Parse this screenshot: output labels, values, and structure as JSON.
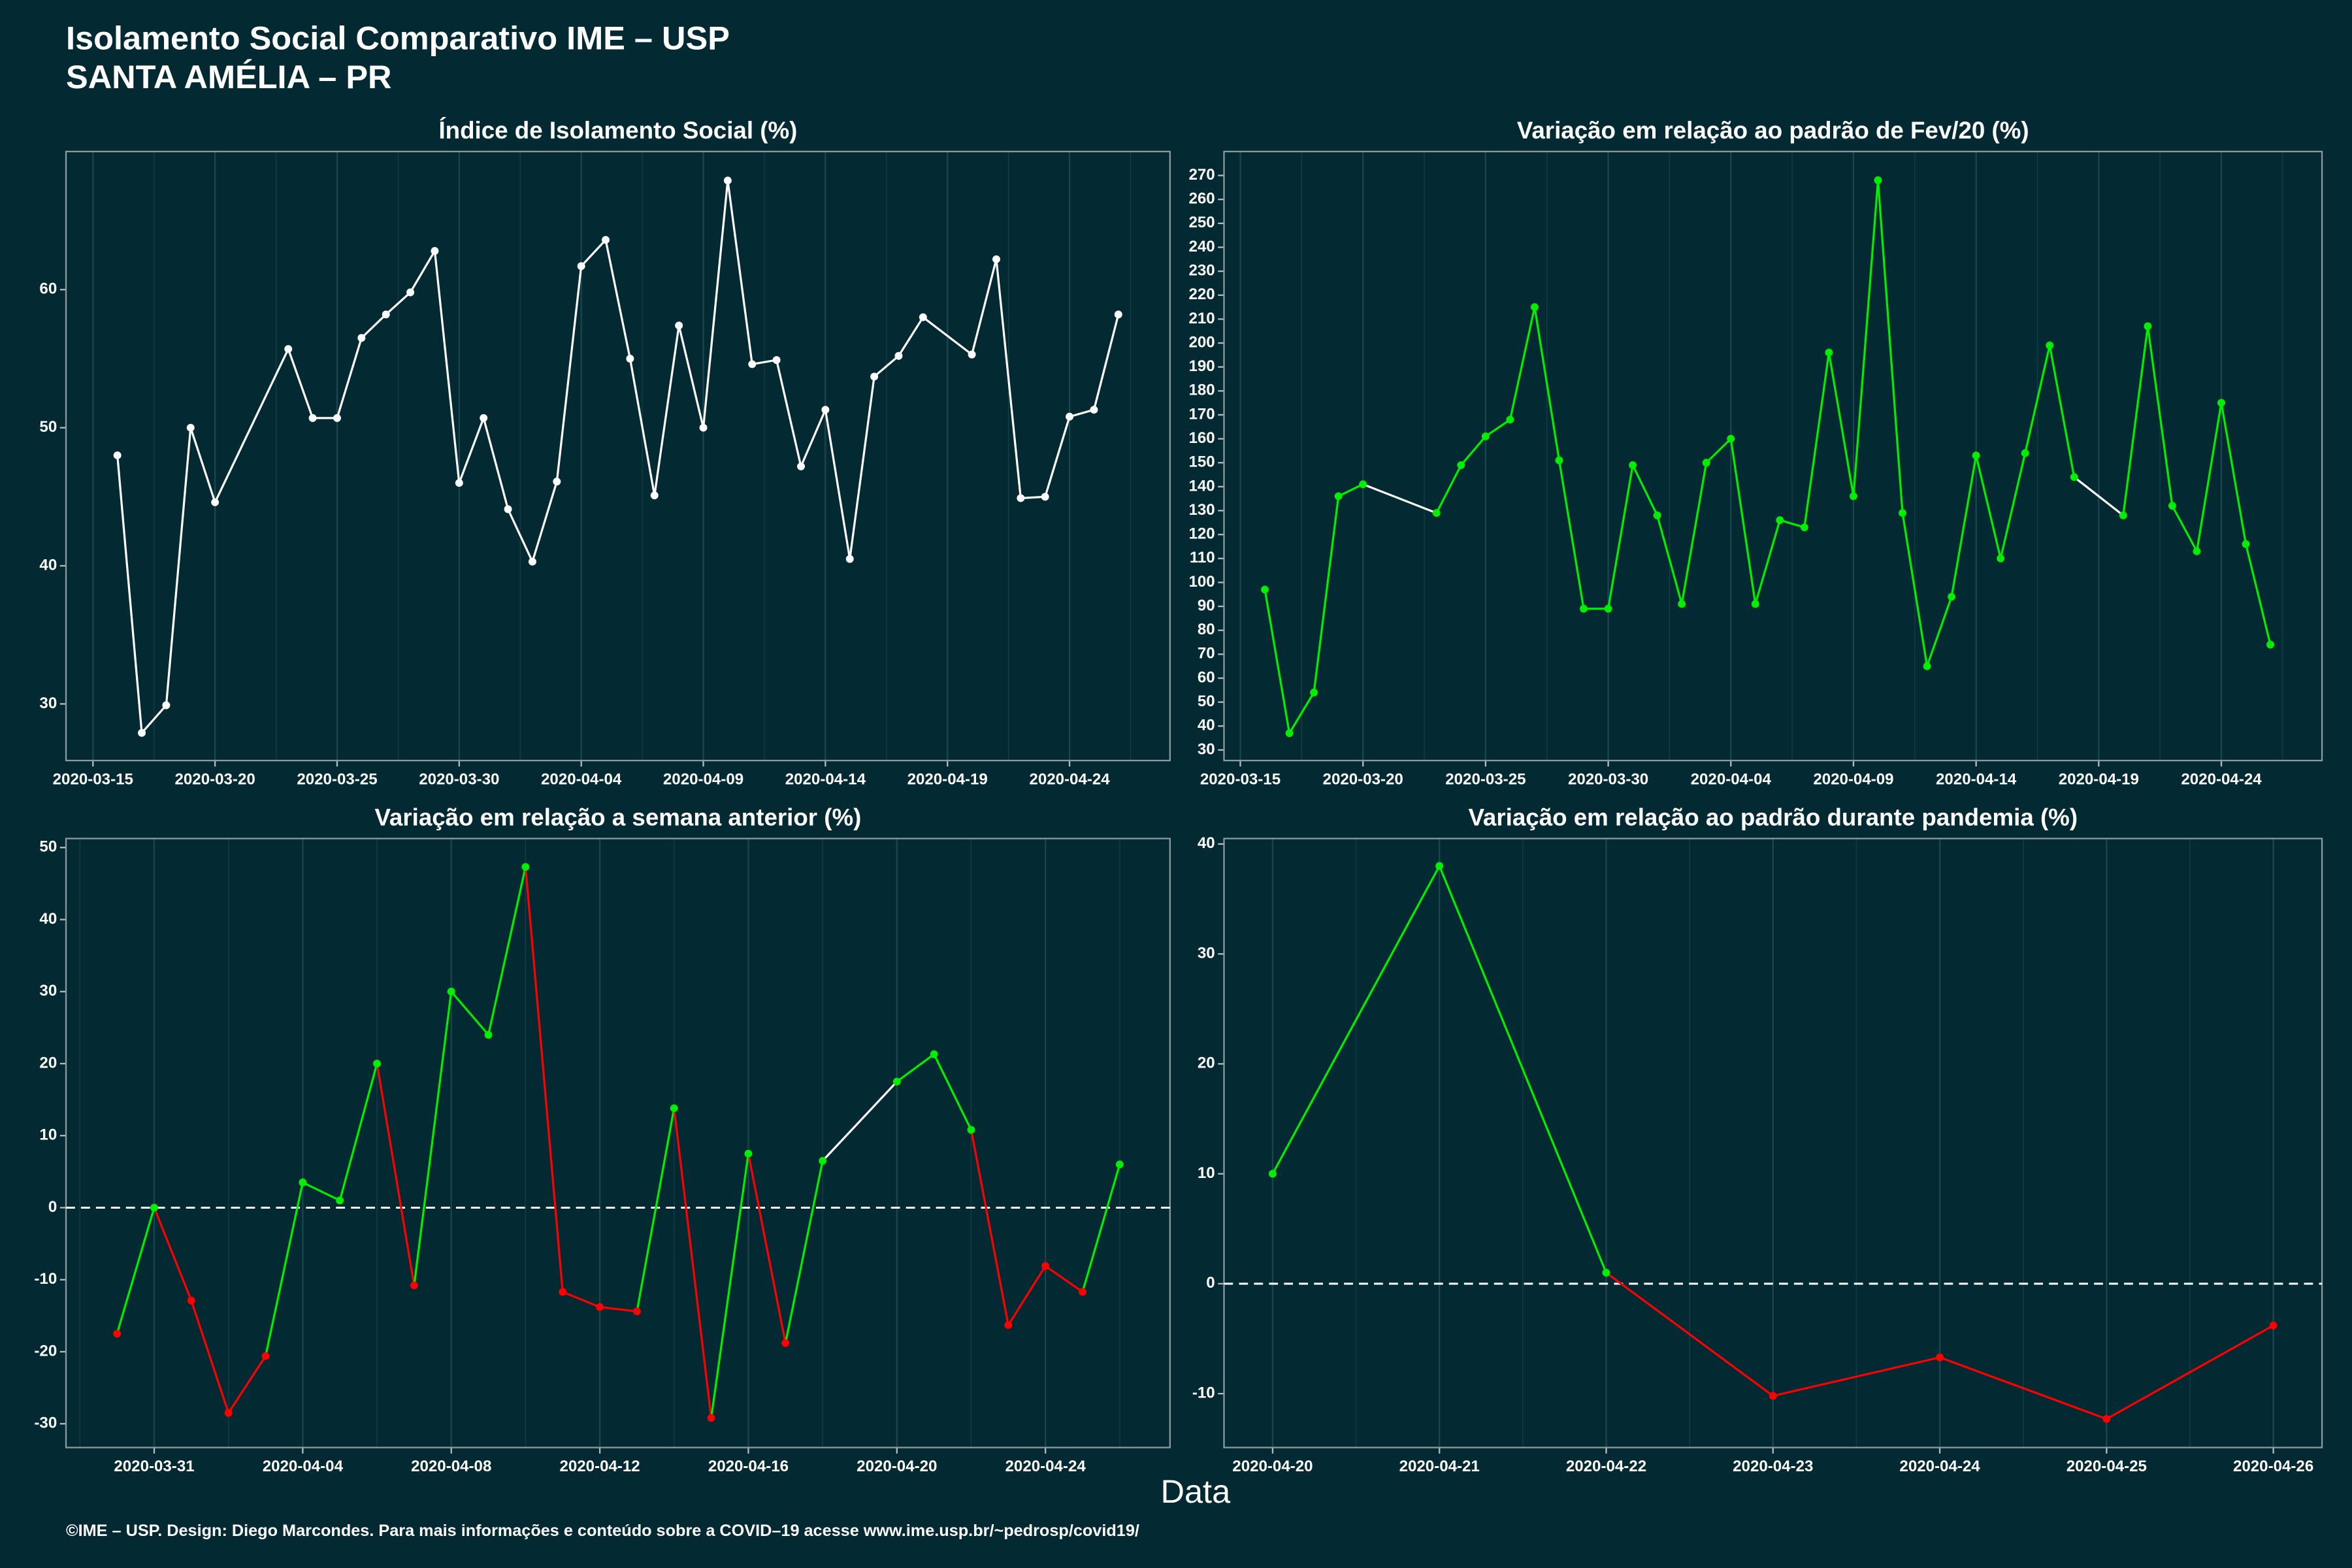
{
  "title": "Isolamento Social Comparativo IME – USP",
  "subtitle": "SANTA AMÉLIA – PR",
  "x_label": "Data",
  "footer": "©IME – USP. Design: Diego Marcondes. Para mais informações e conteúdo sobre a COVID–19 acesse www.ime.usp.br/~pedrosp/covid19/",
  "chart_data": [
    {
      "type": "line",
      "title": "Índice de Isolamento Social (%)",
      "x": [
        "2020-03-16",
        "2020-03-17",
        "2020-03-18",
        "2020-03-19",
        "2020-03-20",
        "2020-03-23",
        "2020-03-24",
        "2020-03-25",
        "2020-03-26",
        "2020-03-27",
        "2020-03-28",
        "2020-03-29",
        "2020-03-30",
        "2020-03-31",
        "2020-04-01",
        "2020-04-02",
        "2020-04-03",
        "2020-04-04",
        "2020-04-05",
        "2020-04-06",
        "2020-04-07",
        "2020-04-08",
        "2020-04-09",
        "2020-04-10",
        "2020-04-11",
        "2020-04-12",
        "2020-04-13",
        "2020-04-14",
        "2020-04-15",
        "2020-04-16",
        "2020-04-17",
        "2020-04-18",
        "2020-04-20",
        "2020-04-21",
        "2020-04-22",
        "2020-04-23",
        "2020-04-24",
        "2020-04-25",
        "2020-04-26"
      ],
      "values": [
        48.0,
        27.9,
        29.9,
        50.0,
        44.6,
        55.7,
        50.7,
        50.7,
        56.5,
        58.2,
        59.8,
        62.8,
        46.0,
        50.7,
        44.1,
        40.3,
        46.1,
        61.7,
        63.6,
        55.0,
        45.1,
        57.4,
        50.0,
        67.9,
        54.6,
        54.9,
        47.2,
        51.3,
        40.5,
        53.7,
        55.2,
        58.0,
        55.3,
        62.2,
        44.9,
        45.0,
        50.8,
        51.3,
        58.2
      ],
      "colors": {
        "positive": "#ffffff",
        "gap": "#ffffff"
      },
      "xlim": [
        "2020-03-13T21:30Z",
        "2020-04-28T02:45Z"
      ],
      "xticks": [
        "2020-03-15",
        "2020-03-20",
        "2020-03-25",
        "2020-03-30",
        "2020-04-04",
        "2020-04-09",
        "2020-04-14",
        "2020-04-19",
        "2020-04-24"
      ],
      "ylim": [
        25.9,
        70
      ],
      "yticks": [
        30,
        40,
        50,
        60
      ],
      "grid": true
    },
    {
      "type": "line",
      "title": "Variação em relação ao padrão de Fev/20 (%)",
      "x": [
        "2020-03-16",
        "2020-03-17",
        "2020-03-18",
        "2020-03-19",
        "2020-03-20",
        "2020-03-23",
        "2020-03-24",
        "2020-03-25",
        "2020-03-26",
        "2020-03-27",
        "2020-03-28",
        "2020-03-29",
        "2020-03-30",
        "2020-03-31",
        "2020-04-01",
        "2020-04-02",
        "2020-04-03",
        "2020-04-04",
        "2020-04-05",
        "2020-04-06",
        "2020-04-07",
        "2020-04-08",
        "2020-04-09",
        "2020-04-10",
        "2020-04-11",
        "2020-04-12",
        "2020-04-13",
        "2020-04-14",
        "2020-04-15",
        "2020-04-16",
        "2020-04-17",
        "2020-04-18",
        "2020-04-20",
        "2020-04-21",
        "2020-04-22",
        "2020-04-23",
        "2020-04-24",
        "2020-04-25",
        "2020-04-26"
      ],
      "values": [
        97,
        37,
        54,
        136,
        141,
        129,
        149,
        161,
        168,
        215,
        151,
        89,
        89,
        149,
        128,
        91,
        150,
        160,
        91,
        126,
        123,
        196,
        136,
        268,
        129,
        65,
        94,
        153,
        110,
        154,
        199,
        144,
        128,
        207,
        132,
        113,
        175,
        116,
        74
      ],
      "colors": {
        "positive": "#00ee00",
        "negative": "#ff0000",
        "gap": "#ffffff"
      },
      "xlim": [
        "2020-03-14T08:00Z",
        "2020-04-28T02:30Z"
      ],
      "xticks": [
        "2020-03-15",
        "2020-03-20",
        "2020-03-25",
        "2020-03-30",
        "2020-04-04",
        "2020-04-09",
        "2020-04-14",
        "2020-04-19",
        "2020-04-24"
      ],
      "ylim": [
        25.6,
        280
      ],
      "yticks": [
        30,
        40,
        50,
        60,
        70,
        80,
        90,
        100,
        110,
        120,
        130,
        140,
        150,
        160,
        170,
        180,
        190,
        200,
        210,
        220,
        230,
        240,
        250,
        260,
        270
      ],
      "grid": true
    },
    {
      "type": "line",
      "title": "Variação em relação a semana anterior (%)",
      "x": [
        "2020-03-30",
        "2020-03-31",
        "2020-04-01",
        "2020-04-02",
        "2020-04-03",
        "2020-04-04",
        "2020-04-05",
        "2020-04-06",
        "2020-04-07",
        "2020-04-08",
        "2020-04-09",
        "2020-04-10",
        "2020-04-11",
        "2020-04-12",
        "2020-04-13",
        "2020-04-14",
        "2020-04-15",
        "2020-04-16",
        "2020-04-17",
        "2020-04-18",
        "2020-04-20",
        "2020-04-21",
        "2020-04-22",
        "2020-04-23",
        "2020-04-24",
        "2020-04-25",
        "2020-04-26"
      ],
      "values": [
        -17.5,
        0,
        -12.9,
        -28.5,
        -20.6,
        3.5,
        1.0,
        20,
        -10.8,
        30,
        24,
        47.3,
        -11.7,
        -13.8,
        -14.4,
        13.8,
        -29.2,
        7.5,
        -18.8,
        6.5,
        17.5,
        21.3,
        10.8,
        -16.3,
        -8.1,
        -11.7,
        6.0
      ],
      "colors": {
        "positive": "#00ee00",
        "negative": "#ff0000",
        "gap": "#ffffff"
      },
      "hline": 0,
      "xlim": [
        "2020-03-28T15:00Z",
        "2020-04-27T08:30Z"
      ],
      "xticks": [
        "2020-03-31",
        "2020-04-04",
        "2020-04-08",
        "2020-04-12",
        "2020-04-16",
        "2020-04-20",
        "2020-04-24"
      ],
      "ylim": [
        -33.3,
        51.25
      ],
      "yticks": [
        -30,
        -20,
        -10,
        0,
        10,
        20,
        30,
        40,
        50
      ],
      "grid": true
    },
    {
      "type": "line",
      "title": "Variação em relação ao padrão durante pandemia (%)",
      "x": [
        "2020-04-20",
        "2020-04-21",
        "2020-04-22",
        "2020-04-23",
        "2020-04-24",
        "2020-04-25",
        "2020-04-26"
      ],
      "values": [
        10,
        38,
        1.0,
        -10.2,
        -6.7,
        -12.3,
        -3.8
      ],
      "colors": {
        "positive": "#00ee00",
        "negative": "#ff0000",
        "gap": "#ffffff"
      },
      "hline": 0,
      "xlim": [
        "2020-04-19T17:00Z",
        "2020-04-26T07:00Z"
      ],
      "xticks": [
        "2020-04-20",
        "2020-04-21",
        "2020-04-22",
        "2020-04-23",
        "2020-04-24",
        "2020-04-25",
        "2020-04-26"
      ],
      "ylim": [
        -14.9,
        40.5
      ],
      "yticks": [
        -10,
        0,
        10,
        20,
        30,
        40
      ],
      "grid": true
    }
  ]
}
